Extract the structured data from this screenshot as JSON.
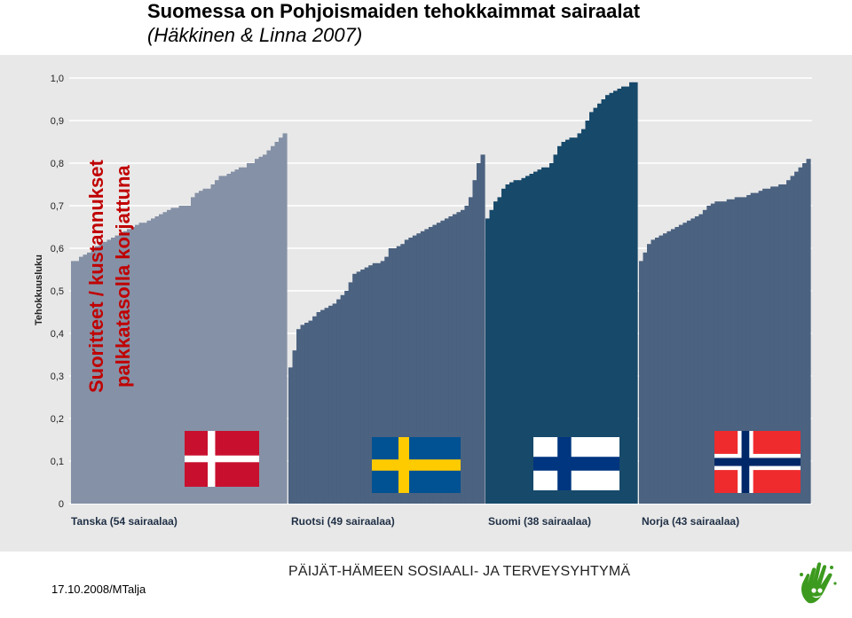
{
  "header": {
    "title": "Suomessa on Pohjoismaiden tehokkaimmat sairaalat",
    "subtitle": "(Häkkinen & Linna 2007)"
  },
  "overlay": {
    "line1": "Suoritteet / kustannukset",
    "line2": "palkkatasolla korjattuna"
  },
  "footer": {
    "date": "17.10.2008/MTalja",
    "organization": "PÄIJÄT-HÄMEEN SOSIAALI- JA TERVEYSYHTYMÄ"
  },
  "colors": {
    "panel_bg": "#e8e8e8",
    "grid": "#ffffff",
    "tanska": "#8591a6",
    "ruotsi": "#4b6280",
    "suomi": "#17496a",
    "norja": "#4b6280",
    "overlay_text": "#c00000",
    "logo_green": "#3c9a1e"
  },
  "chart_data": {
    "type": "bar",
    "ylabel": "Tehokkuusluku",
    "ylim": [
      0,
      1.0
    ],
    "yticks": [
      "0",
      "0,1",
      "0,2",
      "0,3",
      "0,4",
      "0,5",
      "0,6",
      "0,7",
      "0,8",
      "0,9",
      "1,0"
    ],
    "grid": true,
    "series": [
      {
        "name": "Tanska (54 sairaalaa)",
        "flag": "Denmark",
        "values": [
          0.57,
          0.57,
          0.58,
          0.585,
          0.59,
          0.6,
          0.605,
          0.61,
          0.615,
          0.62,
          0.625,
          0.63,
          0.635,
          0.64,
          0.645,
          0.65,
          0.655,
          0.66,
          0.66,
          0.665,
          0.67,
          0.675,
          0.68,
          0.685,
          0.69,
          0.695,
          0.695,
          0.7,
          0.7,
          0.7,
          0.72,
          0.73,
          0.735,
          0.74,
          0.74,
          0.75,
          0.76,
          0.77,
          0.77,
          0.775,
          0.78,
          0.785,
          0.79,
          0.79,
          0.8,
          0.8,
          0.81,
          0.815,
          0.82,
          0.83,
          0.84,
          0.85,
          0.86,
          0.87
        ]
      },
      {
        "name": "Ruotsi (49 sairaalaa)",
        "flag": "Sweden",
        "values": [
          0.32,
          0.36,
          0.41,
          0.42,
          0.425,
          0.43,
          0.44,
          0.45,
          0.455,
          0.46,
          0.465,
          0.47,
          0.48,
          0.49,
          0.5,
          0.52,
          0.54,
          0.545,
          0.55,
          0.555,
          0.56,
          0.565,
          0.565,
          0.57,
          0.58,
          0.6,
          0.6,
          0.605,
          0.61,
          0.62,
          0.625,
          0.63,
          0.635,
          0.64,
          0.645,
          0.65,
          0.655,
          0.66,
          0.665,
          0.67,
          0.675,
          0.68,
          0.685,
          0.69,
          0.7,
          0.72,
          0.76,
          0.8,
          0.82
        ]
      },
      {
        "name": "Suomi (38 sairaalaa)",
        "flag": "Finland",
        "values": [
          0.67,
          0.69,
          0.71,
          0.72,
          0.74,
          0.75,
          0.755,
          0.76,
          0.76,
          0.765,
          0.77,
          0.775,
          0.78,
          0.785,
          0.79,
          0.79,
          0.8,
          0.82,
          0.84,
          0.85,
          0.855,
          0.86,
          0.86,
          0.87,
          0.88,
          0.9,
          0.92,
          0.93,
          0.94,
          0.95,
          0.96,
          0.965,
          0.97,
          0.975,
          0.98,
          0.98,
          0.99,
          0.99
        ]
      },
      {
        "name": "Norja (43 sairaalaa)",
        "flag": "Norway",
        "values": [
          0.57,
          0.59,
          0.61,
          0.62,
          0.625,
          0.63,
          0.635,
          0.64,
          0.645,
          0.65,
          0.655,
          0.66,
          0.665,
          0.67,
          0.675,
          0.68,
          0.69,
          0.7,
          0.705,
          0.71,
          0.71,
          0.71,
          0.715,
          0.715,
          0.72,
          0.72,
          0.72,
          0.725,
          0.73,
          0.73,
          0.735,
          0.74,
          0.74,
          0.745,
          0.745,
          0.75,
          0.75,
          0.76,
          0.77,
          0.78,
          0.79,
          0.8,
          0.81
        ]
      }
    ]
  }
}
